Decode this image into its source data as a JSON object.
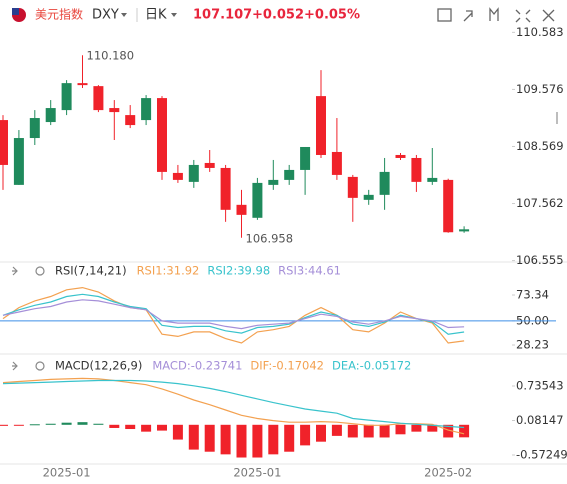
{
  "header": {
    "name": "美元指数",
    "symbol": "DXY",
    "period": "日K",
    "price": "107.107",
    "change": "+0.052",
    "change_pct": "+0.05%"
  },
  "chart_data": [
    {
      "type": "candlestick",
      "categories": [
        null,
        null,
        null,
        null,
        "2025-01",
        null,
        null,
        null,
        null,
        null,
        null,
        null,
        null,
        null,
        null,
        null,
        "2025-01",
        null,
        null,
        null,
        null,
        null,
        null,
        null,
        null,
        null,
        null,
        null,
        "2025-02",
        null
      ],
      "open": [
        109.035,
        107.891,
        108.718,
        109.0,
        109.211,
        109.687,
        109.634,
        109.247,
        109.123,
        109.035,
        109.423,
        108.102,
        107.944,
        108.278,
        108.19,
        107.539,
        107.31,
        107.891,
        107.979,
        108.155,
        109.458,
        108.472,
        108.032,
        107.627,
        107.715,
        108.419,
        108.366,
        107.944,
        107.979,
        107.07
      ],
      "high": [
        109.123,
        108.859,
        109.211,
        109.388,
        109.74,
        110.18,
        109.652,
        109.388,
        109.3,
        109.476,
        109.458,
        108.243,
        108.331,
        108.507,
        108.243,
        107.803,
        108.014,
        108.331,
        108.243,
        108.56,
        109.916,
        109.071,
        108.067,
        107.803,
        108.366,
        108.454,
        108.419,
        108.542,
        108.0,
        107.16
      ],
      "low": [
        107.803,
        107.891,
        108.595,
        108.947,
        109.123,
        109.6,
        109.176,
        108.683,
        108.894,
        108.947,
        107.979,
        107.926,
        107.838,
        108.12,
        107.239,
        106.958,
        107.274,
        107.803,
        107.891,
        107.715,
        108.366,
        107.979,
        107.239,
        107.539,
        107.451,
        108.331,
        107.767,
        107.891,
        107.046,
        107.046
      ],
      "close": [
        108.243,
        108.718,
        109.071,
        109.247,
        109.687,
        109.652,
        109.211,
        109.176,
        108.947,
        109.423,
        108.12,
        107.979,
        108.243,
        108.19,
        107.451,
        107.362,
        107.926,
        107.979,
        108.155,
        108.56,
        108.419,
        108.067,
        107.662,
        107.715,
        108.12,
        108.366,
        107.944,
        108.014,
        107.055,
        107.107
      ],
      "up_color": "#1f8a5c",
      "down_color": "#f0222a",
      "ylim": [
        106.53,
        110.66
      ],
      "yticks": [
        110.583,
        109.576,
        108.569,
        107.562,
        106.555
      ],
      "annotations": [
        "110.180",
        "106.958"
      ]
    },
    {
      "type": "line",
      "title": "RSI(7,14,21)",
      "series": [
        {
          "name": "RSI1:31.92",
          "color": "#f3a150",
          "values": [
            52,
            62,
            68,
            72,
            78,
            80,
            76,
            68,
            62,
            60,
            38,
            36,
            40,
            40,
            34,
            30,
            40,
            42,
            45,
            55,
            62,
            55,
            42,
            40,
            48,
            58,
            52,
            48,
            30,
            31.92
          ]
        },
        {
          "name": "RSI2:39.98",
          "color": "#39c3cc",
          "values": [
            55,
            60,
            64,
            67,
            72,
            74,
            72,
            67,
            63,
            61,
            46,
            44,
            45,
            45,
            41,
            39,
            44,
            45,
            47,
            53,
            58,
            55,
            47,
            45,
            49,
            55,
            52,
            49,
            38,
            39.98
          ]
        },
        {
          "name": "RSI3:44.61",
          "color": "#a58fd8",
          "values": [
            55,
            58,
            61,
            63,
            67,
            69,
            68,
            65,
            62,
            60,
            50,
            48,
            48,
            48,
            45,
            43,
            46,
            47,
            48,
            52,
            56,
            54,
            49,
            47,
            50,
            54,
            52,
            50,
            44,
            44.61
          ]
        }
      ],
      "hline": {
        "value": 50,
        "color": "#3d8fe8"
      },
      "ylim": [
        21.9,
        97.7
      ],
      "yticks": [
        73.34,
        {
          "value": 50,
          "label": "50.00"
        },
        28.23
      ]
    },
    {
      "type": "macd",
      "title": "MACD(12,26,9)",
      "series": [
        {
          "name": "MACD:-0.23741",
          "color": "#a58fd8",
          "pos_color": "#1f8a5c",
          "neg_color": "#f0222a",
          "bars": true,
          "values": [
            -0.02,
            -0.01,
            0.01,
            0.02,
            0.04,
            0.05,
            0.02,
            -0.06,
            -0.08,
            -0.13,
            -0.11,
            -0.28,
            -0.47,
            -0.51,
            -0.56,
            -0.62,
            -0.62,
            -0.56,
            -0.51,
            -0.39,
            -0.32,
            -0.21,
            -0.24,
            -0.24,
            -0.24,
            -0.18,
            -0.13,
            -0.13,
            -0.24,
            -0.23741
          ]
        },
        {
          "name": "DIF:-0.17042",
          "color": "#f3a150",
          "values": [
            0.8,
            0.82,
            0.84,
            0.86,
            0.87,
            0.88,
            0.87,
            0.84,
            0.8,
            0.76,
            0.68,
            0.58,
            0.47,
            0.38,
            0.28,
            0.18,
            0.12,
            0.08,
            0.05,
            0.05,
            0.06,
            0.05,
            0.02,
            -0.01,
            -0.01,
            0.02,
            0.02,
            0.01,
            -0.1,
            -0.17042
          ]
        },
        {
          "name": "DEA:-0.05172",
          "color": "#39c3cc",
          "values": [
            0.78,
            0.79,
            0.8,
            0.81,
            0.82,
            0.83,
            0.84,
            0.84,
            0.84,
            0.83,
            0.81,
            0.78,
            0.74,
            0.69,
            0.63,
            0.56,
            0.49,
            0.42,
            0.36,
            0.3,
            0.26,
            0.22,
            0.12,
            0.09,
            0.06,
            0.03,
            0.01,
            -0.01,
            -0.03,
            -0.05172
          ]
        }
      ],
      "ylim": [
        -0.705,
        1.266
      ],
      "yticks": [
        0.73543,
        0.08147,
        -0.57249
      ]
    }
  ]
}
